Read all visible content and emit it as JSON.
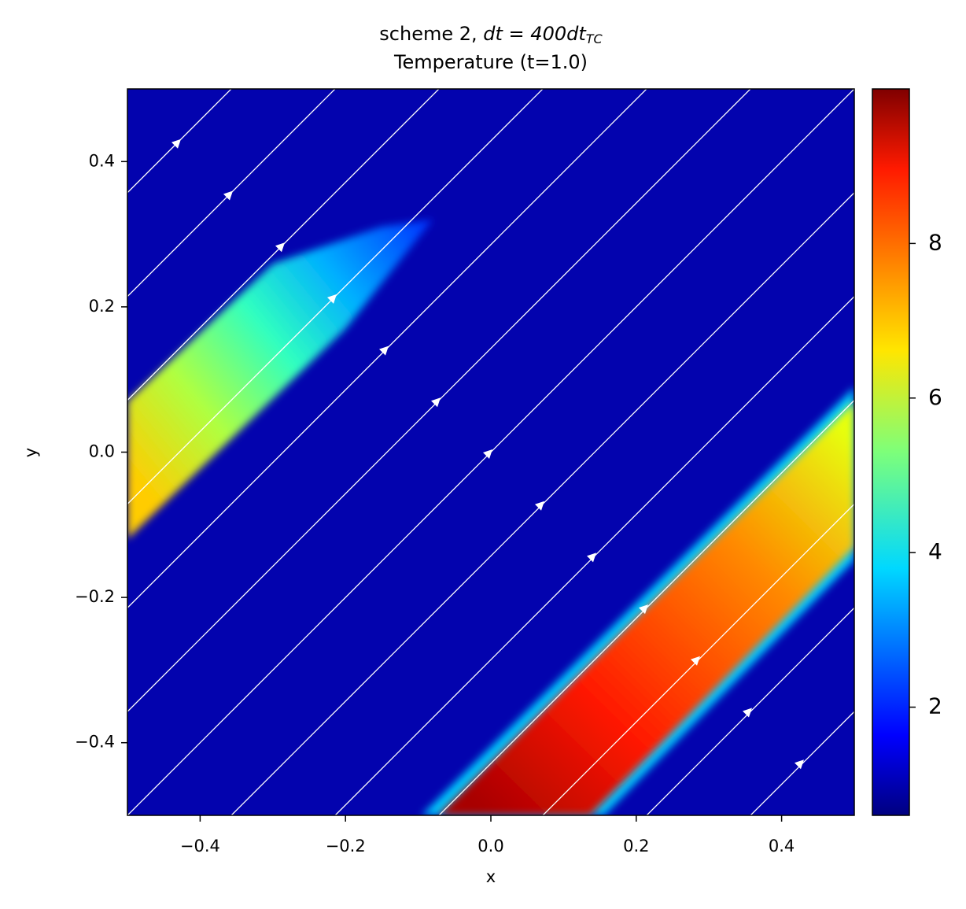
{
  "chart_data": {
    "type": "heatmap",
    "title_prefix": "scheme 2, ",
    "title_math": "dt = 400dt",
    "title_subscript": "TC",
    "subtitle": "Temperature (t=1.0)",
    "x_label": "x",
    "y_label": "y",
    "xlim": [
      -0.5,
      0.5
    ],
    "ylim": [
      -0.5,
      0.5
    ],
    "xticks": [
      {
        "value": -0.4,
        "label": "−0.4"
      },
      {
        "value": -0.2,
        "label": "−0.2"
      },
      {
        "value": 0,
        "label": "0.0"
      },
      {
        "value": 0.2,
        "label": "0.2"
      },
      {
        "value": 0.4,
        "label": "0.4"
      }
    ],
    "yticks": [
      {
        "value": -0.4,
        "label": "−0.4"
      },
      {
        "value": -0.2,
        "label": "−0.2"
      },
      {
        "value": 0,
        "label": "0.0"
      },
      {
        "value": 0.2,
        "label": "0.2"
      },
      {
        "value": 0.4,
        "label": "0.4"
      }
    ],
    "colormap": "jet",
    "clim": [
      0.6,
      10.0
    ],
    "cticks": [
      2,
      4,
      6,
      8
    ]
  }
}
